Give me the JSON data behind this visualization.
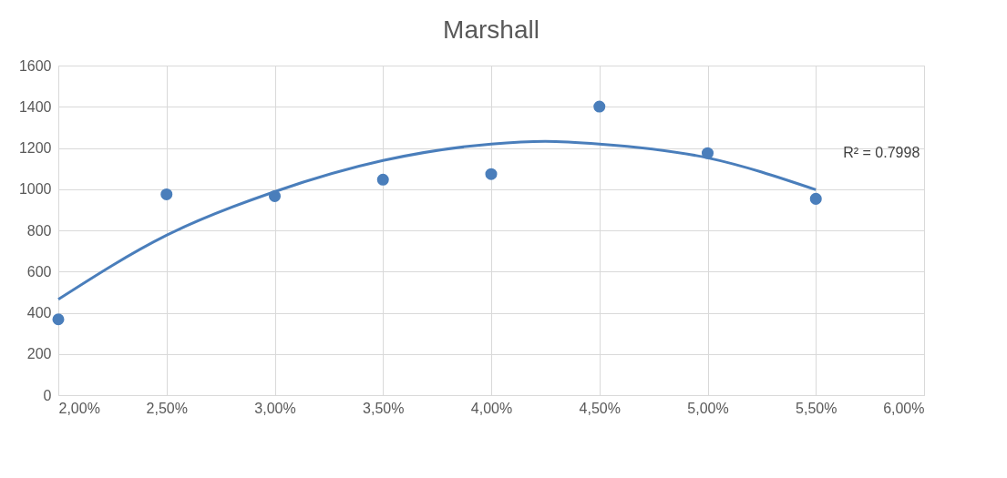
{
  "chart_data": {
    "type": "scatter",
    "title": "Marshall",
    "series": [
      {
        "marker": "circle",
        "color": "#4a7ebb",
        "x": [
          2.0,
          2.5,
          3.0,
          3.5,
          4.0,
          4.5,
          5.0,
          5.5
        ],
        "values": [
          368,
          975,
          966,
          1046,
          1073,
          1401,
          1175,
          953
        ]
      },
      {
        "type": "line",
        "marker": "none",
        "color": "#4a7ebb",
        "x": [
          2.0,
          2.5,
          3.0,
          3.5,
          4.0,
          4.25,
          4.5,
          5.0,
          5.5
        ],
        "values": [
          465,
          776,
          988,
          1139,
          1219,
          1232,
          1219,
          1152,
          997
        ]
      }
    ],
    "xlim": [
      2,
      6
    ],
    "xticks": [
      {
        "value": 2,
        "label": "2,00%"
      },
      {
        "value": 2.5,
        "label": "2,50%"
      },
      {
        "value": 3,
        "label": "3,00%"
      },
      {
        "value": 3.5,
        "label": "3,50%"
      },
      {
        "value": 4,
        "label": "4,00%"
      },
      {
        "value": 4.5,
        "label": "4,50%"
      },
      {
        "value": 5,
        "label": "5,00%"
      },
      {
        "value": 5.5,
        "label": "5,50%"
      },
      {
        "value": 6,
        "label": "6,00%"
      }
    ],
    "ylim": [
      0,
      1600
    ],
    "yticks": [
      0,
      200,
      400,
      600,
      800,
      1000,
      1200,
      1400,
      1600
    ],
    "grid": true,
    "annotations": [
      "R² = 0.7998"
    ]
  }
}
